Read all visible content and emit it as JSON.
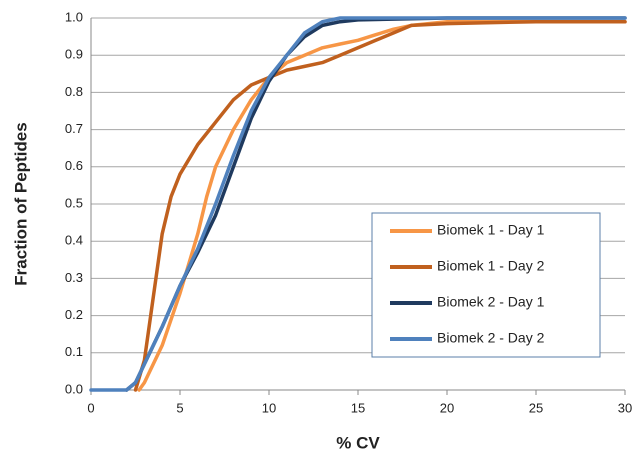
{
  "chart_data": {
    "type": "line",
    "x_label": "% CV",
    "y_label": "Fraction of Peptides",
    "xlim": [
      0,
      30
    ],
    "xticks": [
      0,
      5,
      10,
      15,
      20,
      25,
      30
    ],
    "ylim": [
      0,
      1
    ],
    "yticks": [
      {
        "value": 0,
        "label": "0.0"
      },
      {
        "value": 0.1,
        "label": "0.1"
      },
      {
        "value": 0.2,
        "label": "0.2"
      },
      {
        "value": 0.3,
        "label": "0.3"
      },
      {
        "value": 0.4,
        "label": "0.4"
      },
      {
        "value": 0.5,
        "label": "0.5"
      },
      {
        "value": 0.6,
        "label": "0.6"
      },
      {
        "value": 0.7,
        "label": "0.7"
      },
      {
        "value": 0.8,
        "label": "0.8"
      },
      {
        "value": 0.9,
        "label": "0.9"
      },
      {
        "value": 1,
        "label": "1.0"
      }
    ],
    "grid": true,
    "legend": "lower right",
    "series": [
      {
        "name": "Biomek 1 - Day 1",
        "color": "#f79646",
        "x": [
          2.7,
          3,
          4,
          5,
          6,
          6.5,
          7,
          8,
          9,
          10,
          11,
          12,
          13,
          14,
          15,
          16,
          17,
          18,
          20,
          25,
          30
        ],
        "values": [
          0,
          0.02,
          0.12,
          0.26,
          0.42,
          0.52,
          0.6,
          0.7,
          0.78,
          0.84,
          0.88,
          0.9,
          0.92,
          0.93,
          0.94,
          0.955,
          0.97,
          0.98,
          0.99,
          0.99,
          0.99
        ]
      },
      {
        "name": "Biomek 1 - Day 2",
        "color": "#c0601e",
        "x": [
          2.5,
          3,
          3.5,
          4,
          4.5,
          5,
          6,
          7,
          8,
          9,
          10,
          11,
          12,
          13,
          14,
          15,
          16,
          17,
          18,
          20,
          25,
          30
        ],
        "values": [
          0,
          0.08,
          0.25,
          0.42,
          0.52,
          0.58,
          0.66,
          0.72,
          0.78,
          0.82,
          0.84,
          0.86,
          0.87,
          0.88,
          0.9,
          0.92,
          0.94,
          0.96,
          0.98,
          0.985,
          0.99,
          0.99
        ]
      },
      {
        "name": "Biomek 2 - Day 1",
        "color": "#1f3a5f",
        "x": [
          2,
          2.5,
          3,
          4,
          5,
          6,
          7,
          8,
          9,
          10,
          11,
          12,
          13,
          14,
          15,
          20,
          30
        ],
        "values": [
          0,
          0.02,
          0.07,
          0.17,
          0.28,
          0.37,
          0.47,
          0.6,
          0.73,
          0.83,
          0.9,
          0.95,
          0.98,
          0.99,
          0.995,
          1,
          1
        ]
      },
      {
        "name": "Biomek 2 - Day 2",
        "color": "#4f81bd",
        "x": [
          0,
          1,
          2,
          2.5,
          3,
          4,
          5,
          6,
          7,
          8,
          9,
          10,
          11,
          12,
          13,
          14,
          30
        ],
        "values": [
          0,
          0,
          0,
          0.02,
          0.07,
          0.17,
          0.28,
          0.38,
          0.5,
          0.63,
          0.75,
          0.84,
          0.9,
          0.96,
          0.99,
          1,
          1
        ]
      }
    ]
  }
}
